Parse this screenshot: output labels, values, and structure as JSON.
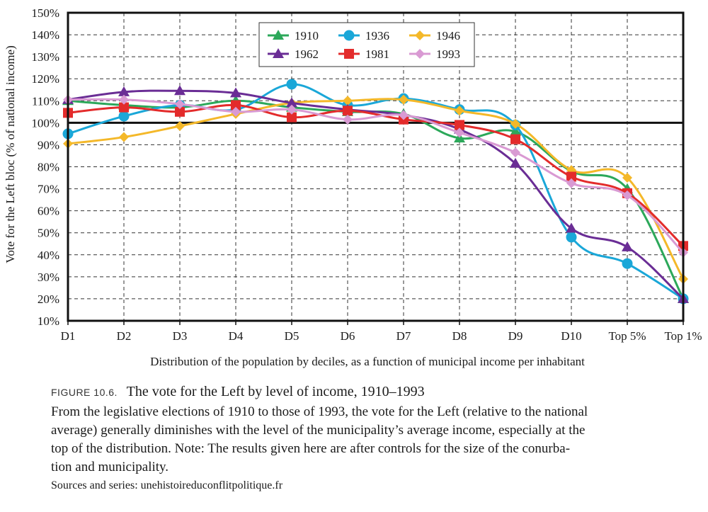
{
  "chart_data": {
    "type": "line",
    "title": "",
    "xlabel": "Distribution of the population by deciles, as a function of municipal income per inhabitant",
    "ylabel": "Vote for the Left bloc (% of national income)",
    "categories": [
      "D1",
      "D2",
      "D3",
      "D4",
      "D5",
      "D6",
      "D7",
      "D8",
      "D9",
      "D10",
      "Top 5%",
      "Top 1%"
    ],
    "y_ticks": [
      "10%",
      "20%",
      "30%",
      "40%",
      "50%",
      "60%",
      "70%",
      "80%",
      "90%",
      "100%",
      "110%",
      "120%",
      "130%",
      "140%",
      "150%"
    ],
    "ylim": [
      10,
      150
    ],
    "reference_line": 100,
    "grid": true,
    "legend_position": "top-center",
    "series": [
      {
        "name": "1910",
        "color": "#2ca85a",
        "marker": "triangle",
        "values": [
          110,
          108,
          107,
          110,
          107,
          105,
          104,
          93,
          96,
          78,
          70,
          20
        ]
      },
      {
        "name": "1936",
        "color": "#1aa7d8",
        "marker": "circle",
        "values": [
          95,
          103,
          108,
          106,
          117.5,
          108,
          111,
          106,
          99,
          48,
          36,
          20
        ]
      },
      {
        "name": "1946",
        "color": "#f4b829",
        "marker": "diamond",
        "values": [
          90.5,
          93.5,
          98.5,
          104,
          109,
          110,
          110.5,
          105.5,
          99.5,
          78.5,
          75,
          29
        ]
      },
      {
        "name": "1962",
        "color": "#6a2d95",
        "marker": "triangle",
        "values": [
          110.5,
          114,
          114.5,
          113.5,
          109,
          106,
          103.5,
          97,
          81.5,
          52,
          43.5,
          20
        ]
      },
      {
        "name": "1981",
        "color": "#e32b2b",
        "marker": "square",
        "values": [
          104.5,
          107,
          105,
          108,
          102.5,
          105.5,
          101.5,
          99,
          92.5,
          75.5,
          68,
          44
        ]
      },
      {
        "name": "1993",
        "color": "#d99ad3",
        "marker": "diamond",
        "values": [
          110.5,
          110.5,
          108.5,
          105,
          106,
          101.5,
          103.5,
          95.5,
          86.5,
          72.5,
          67,
          41
        ]
      }
    ]
  },
  "caption": {
    "figure_label": "FIGURE 10.6.",
    "title": "The vote for the Left by level of income, 1910–1993",
    "body_lines": [
      "From the legislative elections of 1910 to those of 1993, the vote for the Left (relative to the national",
      "average) generally diminishes with the level of the municipality’s average income, especially at the",
      "top of the distribution. Note: The results given here are after controls for the size of the conurba-",
      "tion and municipality."
    ],
    "sources": "Sources and series: unehistoireduconflitpolitique.fr"
  }
}
